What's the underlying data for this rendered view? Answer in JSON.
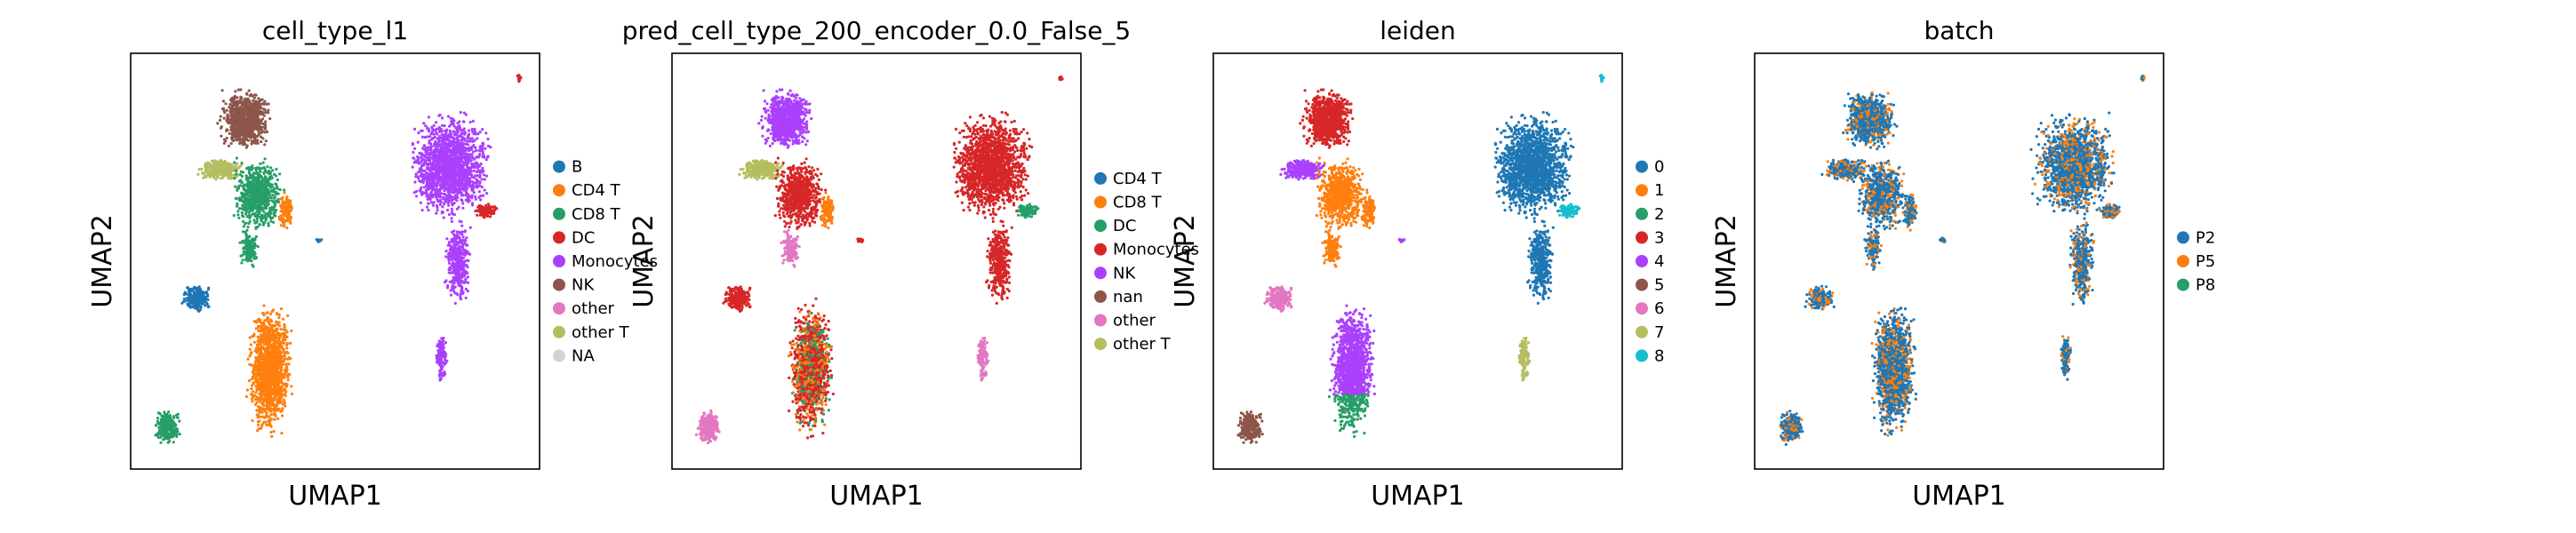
{
  "chart_data": [
    {
      "type": "scatter",
      "title": "cell_type_l1",
      "xlabel": "UMAP1",
      "ylabel": "UMAP2",
      "grid": false,
      "legend_position": "right",
      "legend": [
        {
          "label": "B",
          "color": "#1f77b4"
        },
        {
          "label": "CD4 T",
          "color": "#ff7f0e"
        },
        {
          "label": "CD8 T",
          "color": "#279e68"
        },
        {
          "label": "DC",
          "color": "#d62728"
        },
        {
          "label": "Monocytes",
          "color": "#aa40fc"
        },
        {
          "label": "NK",
          "color": "#8c564b"
        },
        {
          "label": "other",
          "color": "#e377c2"
        },
        {
          "label": "other T",
          "color": "#b5bd61"
        },
        {
          "label": "NA",
          "color": "#d3d3d3"
        }
      ]
    },
    {
      "type": "scatter",
      "title": "pred_cell_type_200_encoder_0.0_False_5",
      "xlabel": "UMAP1",
      "ylabel": "UMAP2",
      "grid": false,
      "legend_position": "right",
      "legend": [
        {
          "label": "CD4 T",
          "color": "#1f77b4"
        },
        {
          "label": "CD8 T",
          "color": "#ff7f0e"
        },
        {
          "label": "DC",
          "color": "#279e68"
        },
        {
          "label": "Monocytes",
          "color": "#d62728"
        },
        {
          "label": "NK",
          "color": "#aa40fc"
        },
        {
          "label": "nan",
          "color": "#8c564b"
        },
        {
          "label": "other",
          "color": "#e377c2"
        },
        {
          "label": "other T",
          "color": "#b5bd61"
        }
      ]
    },
    {
      "type": "scatter",
      "title": "leiden",
      "xlabel": "UMAP1",
      "ylabel": "UMAP2",
      "grid": false,
      "legend_position": "right",
      "legend": [
        {
          "label": "0",
          "color": "#1f77b4"
        },
        {
          "label": "1",
          "color": "#ff7f0e"
        },
        {
          "label": "2",
          "color": "#279e68"
        },
        {
          "label": "3",
          "color": "#d62728"
        },
        {
          "label": "4",
          "color": "#aa40fc"
        },
        {
          "label": "5",
          "color": "#8c564b"
        },
        {
          "label": "6",
          "color": "#e377c2"
        },
        {
          "label": "7",
          "color": "#b5bd61"
        },
        {
          "label": "8",
          "color": "#17becf"
        }
      ]
    },
    {
      "type": "scatter",
      "title": "batch",
      "xlabel": "UMAP1",
      "ylabel": "UMAP2",
      "grid": false,
      "legend_position": "right",
      "legend": [
        {
          "label": "P2",
          "color": "#1f77b4"
        },
        {
          "label": "P5",
          "color": "#ff7f0e"
        },
        {
          "label": "P8",
          "color": "#279e68"
        }
      ]
    }
  ]
}
